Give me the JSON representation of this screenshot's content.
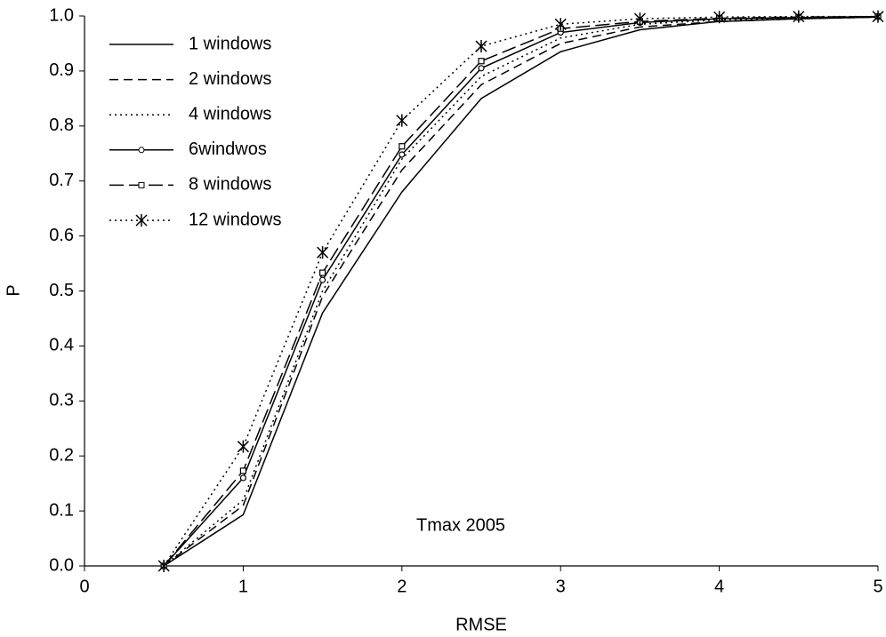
{
  "chart_data": {
    "type": "line",
    "x_label": "RMSE",
    "y_label": "P",
    "annotation": "Tmax 2005",
    "x": [
      0.5,
      1,
      1.5,
      2,
      2.5,
      3,
      3.5,
      4,
      4.5,
      5
    ],
    "series": [
      {
        "name": "1 windows",
        "color": "#000000",
        "dash": "solid",
        "marker": "none",
        "values": [
          0.0,
          0.093,
          0.46,
          0.68,
          0.85,
          0.935,
          0.975,
          0.99,
          0.995,
          0.998
        ]
      },
      {
        "name": "2 windows",
        "color": "#000000",
        "dash": "dashed",
        "marker": "none",
        "values": [
          0.0,
          0.11,
          0.49,
          0.72,
          0.875,
          0.95,
          0.98,
          0.99,
          0.995,
          0.998
        ]
      },
      {
        "name": "4 windows",
        "color": "#000000",
        "dash": "dotted",
        "marker": "none",
        "values": [
          0.0,
          0.12,
          0.5,
          0.74,
          0.89,
          0.96,
          0.985,
          0.993,
          0.996,
          0.998
        ]
      },
      {
        "name": "6windwos",
        "color": "#000000",
        "dash": "solid",
        "marker": "circle",
        "values": [
          0.0,
          0.16,
          0.52,
          0.748,
          0.905,
          0.97,
          0.988,
          0.995,
          0.997,
          0.999
        ]
      },
      {
        "name": "8 windows",
        "color": "#000000",
        "dash": "longdash",
        "marker": "square",
        "values": [
          0.0,
          0.173,
          0.533,
          0.763,
          0.918,
          0.977,
          0.99,
          0.996,
          0.998,
          0.999
        ]
      },
      {
        "name": "12 windows",
        "color": "#000000",
        "dash": "dotted",
        "marker": "asterisk",
        "values": [
          0.0,
          0.217,
          0.57,
          0.81,
          0.945,
          0.985,
          0.995,
          0.998,
          0.999,
          0.999
        ]
      }
    ],
    "xlim": [
      0,
      5
    ],
    "xticks": [
      0,
      1,
      2,
      3,
      4,
      5
    ],
    "ylim": [
      0,
      1
    ],
    "yticks": [
      {
        "value": 0,
        "label": "0.0"
      },
      {
        "value": 0.1,
        "label": "0.1"
      },
      {
        "value": 0.2,
        "label": "0.2"
      },
      {
        "value": 0.3,
        "label": "0.3"
      },
      {
        "value": 0.4,
        "label": "0.4"
      },
      {
        "value": 0.5,
        "label": "0.5"
      },
      {
        "value": 0.6,
        "label": "0.6"
      },
      {
        "value": 0.7,
        "label": "0.7"
      },
      {
        "value": 0.8,
        "label": "0.8"
      },
      {
        "value": 0.9,
        "label": "0.9"
      },
      {
        "value": 1,
        "label": "1.0"
      }
    ],
    "grid": false,
    "legend": "upper left"
  }
}
